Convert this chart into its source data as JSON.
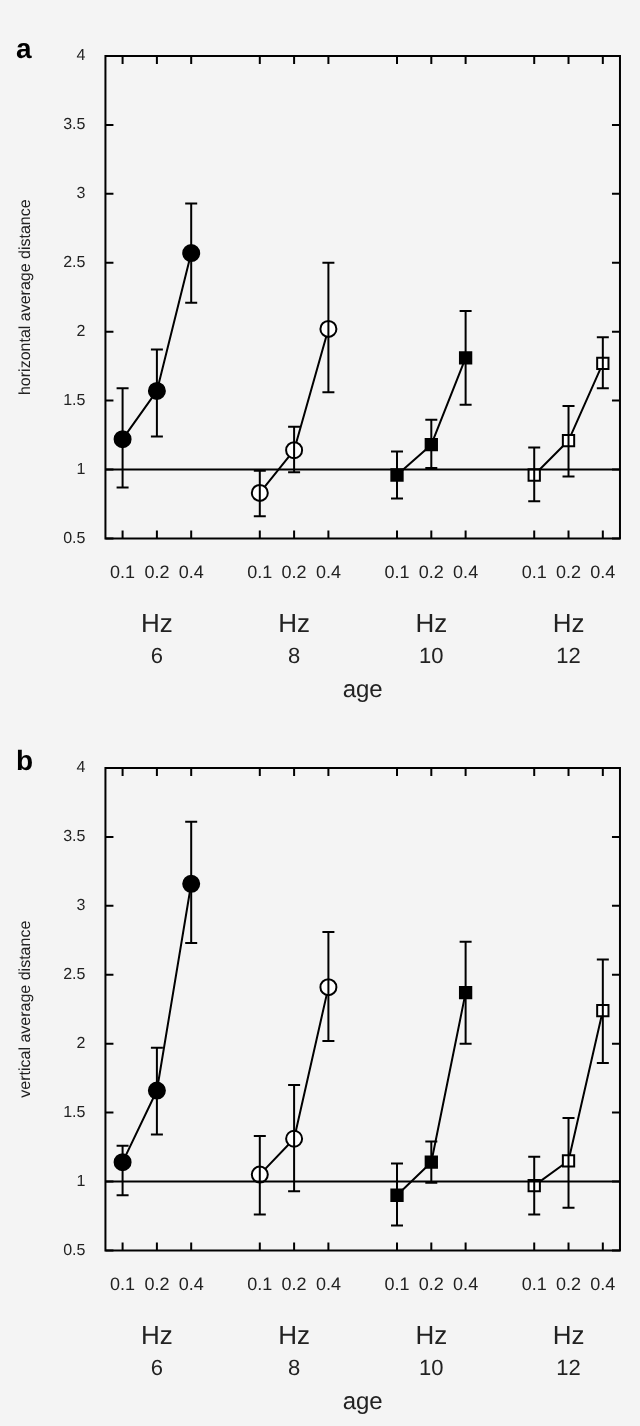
{
  "chart_data": [
    {
      "type": "line",
      "title": "a",
      "xlabel": "age",
      "ylabel": "horizontal average distance",
      "categories": [
        "0.1",
        "0.2",
        "0.4",
        null,
        "0.1",
        "0.2",
        "0.4",
        null,
        "0.1",
        "0.2",
        "0.4",
        null,
        "0.1",
        "0.2",
        "0.4"
      ],
      "series": [
        {
          "color": "#000000",
          "marker": "circle",
          "values": [
            1.22,
            1.57,
            2.57,
            null,
            null,
            null,
            null,
            null,
            null,
            null,
            null,
            null,
            null,
            null,
            null
          ],
          "errors": [
            [
              0.87,
              1.59
            ],
            [
              1.24,
              1.87
            ],
            [
              2.21,
              2.93
            ],
            null,
            null,
            null,
            null,
            null,
            null,
            null,
            null,
            null,
            null,
            null,
            null
          ]
        },
        {
          "color": "#ffffff",
          "marker": "circle",
          "values": [
            null,
            null,
            null,
            null,
            0.83,
            1.14,
            2.02,
            null,
            null,
            null,
            null,
            null,
            null,
            null,
            null
          ],
          "errors": [
            null,
            null,
            null,
            null,
            [
              0.66,
              0.99
            ],
            [
              0.98,
              1.31
            ],
            [
              1.56,
              2.5
            ],
            null,
            null,
            null,
            null,
            null,
            null,
            null,
            null
          ]
        },
        {
          "color": "#000000",
          "marker": "square",
          "values": [
            null,
            null,
            null,
            null,
            null,
            null,
            null,
            null,
            0.96,
            1.18,
            1.81,
            null,
            null,
            null,
            null
          ],
          "errors": [
            null,
            null,
            null,
            null,
            null,
            null,
            null,
            null,
            [
              0.79,
              1.13
            ],
            [
              1.01,
              1.36
            ],
            [
              1.47,
              2.15
            ],
            null,
            null,
            null,
            null
          ]
        },
        {
          "color": "#ffffff",
          "marker": "square",
          "values": [
            null,
            null,
            null,
            null,
            null,
            null,
            null,
            null,
            null,
            null,
            null,
            null,
            0.96,
            1.21,
            1.77
          ],
          "errors": [
            null,
            null,
            null,
            null,
            null,
            null,
            null,
            null,
            null,
            null,
            null,
            null,
            [
              0.77,
              1.16
            ],
            [
              0.95,
              1.46
            ],
            [
              1.59,
              1.96
            ]
          ]
        }
      ],
      "ylim": [
        0.5,
        4
      ],
      "yticks": [
        0.5,
        1,
        1.5,
        2,
        2.5,
        3,
        3.5,
        4
      ],
      "ref_lines": [
        {
          "axis": "y",
          "value": 1,
          "color": "#000000"
        }
      ],
      "annotations": [
        "Hz",
        "6",
        "Hz",
        "8",
        "Hz",
        "10",
        "Hz",
        "12"
      ],
      "legend": false,
      "line_style": "solid"
    },
    {
      "type": "line",
      "title": "b",
      "xlabel": "age",
      "ylabel": "vertical average distance",
      "categories": [
        "0.1",
        "0.2",
        "0.4",
        null,
        "0.1",
        "0.2",
        "0.4",
        null,
        "0.1",
        "0.2",
        "0.4",
        null,
        "0.1",
        "0.2",
        "0.4"
      ],
      "series": [
        {
          "color": "#000000",
          "marker": "circle",
          "values": [
            1.14,
            1.66,
            3.16,
            null,
            null,
            null,
            null,
            null,
            null,
            null,
            null,
            null,
            null,
            null,
            null
          ],
          "errors": [
            [
              0.9,
              1.26
            ],
            [
              1.34,
              1.97
            ],
            [
              2.73,
              3.61
            ],
            null,
            null,
            null,
            null,
            null,
            null,
            null,
            null,
            null,
            null,
            null,
            null
          ]
        },
        {
          "color": "#ffffff",
          "marker": "circle",
          "values": [
            null,
            null,
            null,
            null,
            1.05,
            1.31,
            2.41,
            null,
            null,
            null,
            null,
            null,
            null,
            null,
            null
          ],
          "errors": [
            null,
            null,
            null,
            null,
            [
              0.76,
              1.33
            ],
            [
              0.93,
              1.7
            ],
            [
              2.02,
              2.81
            ],
            null,
            null,
            null,
            null,
            null,
            null,
            null,
            null
          ]
        },
        {
          "color": "#000000",
          "marker": "square",
          "values": [
            null,
            null,
            null,
            null,
            null,
            null,
            null,
            null,
            0.9,
            1.14,
            2.37,
            null,
            null,
            null,
            null
          ],
          "errors": [
            null,
            null,
            null,
            null,
            null,
            null,
            null,
            null,
            [
              0.68,
              1.13
            ],
            [
              0.99,
              1.29
            ],
            [
              2.0,
              2.74
            ],
            null,
            null,
            null,
            null
          ]
        },
        {
          "color": "#ffffff",
          "marker": "square",
          "values": [
            null,
            null,
            null,
            null,
            null,
            null,
            null,
            null,
            null,
            null,
            null,
            null,
            0.97,
            1.15,
            2.24
          ],
          "errors": [
            null,
            null,
            null,
            null,
            null,
            null,
            null,
            null,
            null,
            null,
            null,
            null,
            [
              0.76,
              1.18
            ],
            [
              0.81,
              1.46
            ],
            [
              1.86,
              2.61
            ]
          ]
        }
      ],
      "ylim": [
        0.5,
        4
      ],
      "yticks": [
        0.5,
        1,
        1.5,
        2,
        2.5,
        3,
        3.5,
        4
      ],
      "ref_lines": [
        {
          "axis": "y",
          "value": 1,
          "color": "#000000"
        }
      ],
      "annotations": [
        "Hz",
        "6",
        "Hz",
        "8",
        "Hz",
        "10",
        "Hz",
        "12"
      ],
      "legend": false,
      "line_style": "solid"
    }
  ]
}
